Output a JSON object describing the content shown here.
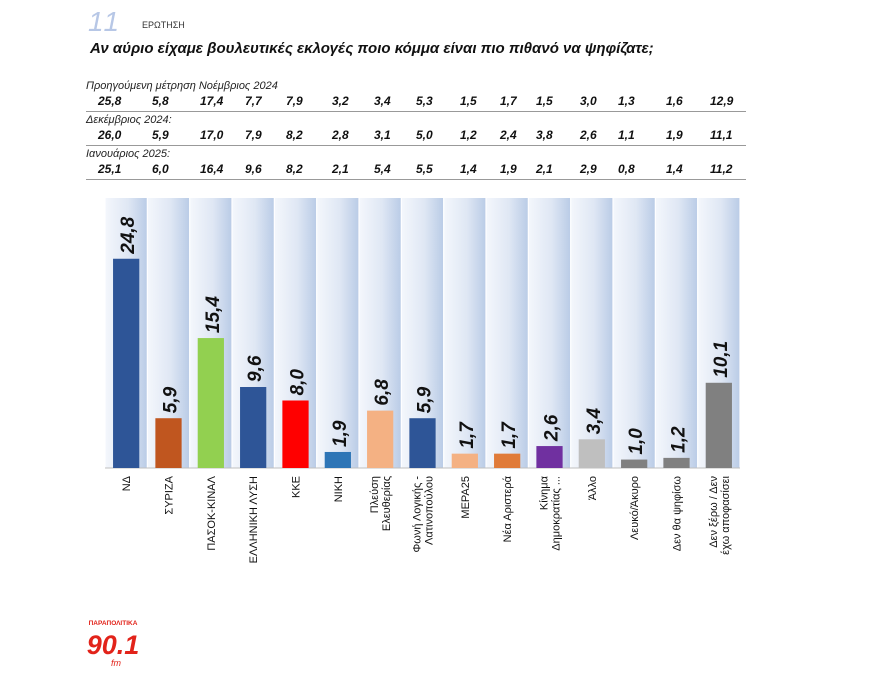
{
  "header": {
    "question_number": "11",
    "question_label": "ΕΡΩΤΗΣΗ",
    "question": "Αν αύριο είχαμε βουλευτικές εκλογές ποιο κόμμα είναι πιο πιθανό να ψηφίζατε;"
  },
  "previous": [
    {
      "label": "Προηγούμενη μέτρηση Νοέμβριος 2024",
      "values": [
        "25,8",
        "5,8",
        "17,4",
        "7,7",
        "7,9",
        "3,2",
        "3,4",
        "5,3",
        "1,5",
        "1,7",
        "1,5",
        "3,0",
        "1,3",
        "1,6",
        "12,9"
      ]
    },
    {
      "label": "Δεκέμβριος 2024:",
      "values": [
        "26,0",
        "5,9",
        "17,0",
        "7,9",
        "8,2",
        "2,8",
        "3,1",
        "5,0",
        "1,2",
        "2,4",
        "3,8",
        "2,6",
        "1,1",
        "1,9",
        "11,1"
      ]
    },
    {
      "label": "Ιανουάριος 2025:",
      "values": [
        "25,1",
        "6,0",
        "16,4",
        "9,6",
        "8,2",
        "2,1",
        "5,4",
        "5,5",
        "1,4",
        "1,9",
        "2,1",
        "2,9",
        "0,8",
        "1,4",
        "11,2"
      ]
    }
  ],
  "chart_data": {
    "type": "bar",
    "title": "",
    "xlabel": "",
    "ylabel": "",
    "ylim": [
      0,
      32
    ],
    "grid": false,
    "categories": [
      "ΝΔ",
      "ΣΥΡΙΖΑ",
      "ΠΑΣΟΚ-ΚΙΝΑΛ",
      "ΕΛΛΗΝΙΚΗ ΛΥΣΗ",
      "ΚΚΕ",
      "ΝΙΚΗ",
      "Πλεύση Ελευθερίας",
      "Φωνή Λογικής - Λατινοπούλου",
      "ΜΕΡΑ25",
      "Νέα Αριστερά",
      "Κίνημα Δημοκρατίας ...",
      "Άλλο",
      "Λευκό/Άκυρο",
      "Δεν θα ψηφίσω",
      "Δεν ξέρω / Δεν έχω αποφασίσει"
    ],
    "category_lines": [
      [
        "ΝΔ"
      ],
      [
        "ΣΥΡΙΖΑ"
      ],
      [
        "ΠΑΣΟΚ-ΚΙΝΑΛ"
      ],
      [
        "ΕΛΛΗΝΙΚΗ ΛΥΣΗ"
      ],
      [
        "ΚΚΕ"
      ],
      [
        "ΝΙΚΗ"
      ],
      [
        "Πλεύση",
        "Ελευθερίας"
      ],
      [
        "Φωνή Λογικής -",
        "Λατινοπούλου"
      ],
      [
        "ΜΕΡΑ25"
      ],
      [
        "Νέα Αριστερά"
      ],
      [
        "Κίνημα",
        "Δημοκρατίας ..."
      ],
      [
        "Άλλο"
      ],
      [
        "Λευκό/Άκυρο"
      ],
      [
        "Δεν θα ψηφίσω"
      ],
      [
        "Δεν ξέρω / Δεν",
        "έχω αποφασίσει"
      ]
    ],
    "values": [
      24.8,
      5.9,
      15.4,
      9.6,
      8.0,
      1.9,
      6.8,
      5.9,
      1.7,
      1.7,
      2.6,
      3.4,
      1.0,
      1.2,
      10.1
    ],
    "value_labels": [
      "24,8",
      "5,9",
      "15,4",
      "9,6",
      "8,0",
      "1,9",
      "6,8",
      "5,9",
      "1,7",
      "1,7",
      "2,6",
      "3,4",
      "1,0",
      "1,2",
      "10,1"
    ],
    "colors": [
      "#2e5597",
      "#c0561f",
      "#92d050",
      "#2e5597",
      "#ff0000",
      "#2e75b6",
      "#f4b183",
      "#2e5597",
      "#f4b183",
      "#e07b39",
      "#7030a0",
      "#bfbfbf",
      "#808080",
      "#808080",
      "#808080"
    ]
  },
  "logo": {
    "top_text": "ΠΑΡΑΠΟΛΙΤΙΚΑ",
    "number": "90.1",
    "suffix": "fm",
    "color": "#e2231a"
  }
}
